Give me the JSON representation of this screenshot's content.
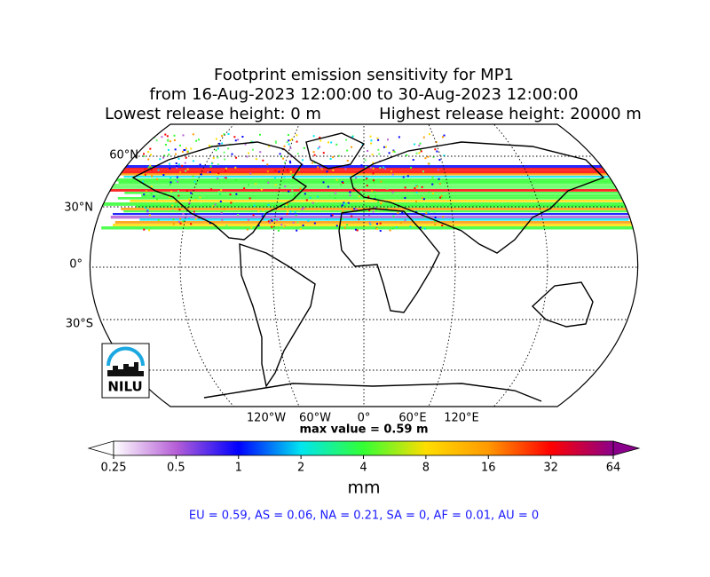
{
  "title": {
    "lines": [
      "Footprint emission sensitivity for MP1",
      "from 16-Aug-2023 12:00:00 to 30-Aug-2023 12:00:00"
    ],
    "lowest": "Lowest release height: 0 m",
    "highest": "Highest release height: 20000 m"
  },
  "map": {
    "lat_labels": [
      "60°N",
      "30°N",
      "0°",
      "30°S"
    ],
    "lon_labels": [
      "120°W",
      "60°W",
      "0°",
      "60°E",
      "120°E"
    ],
    "max_value": "max value = 0.59 m"
  },
  "logo": "NILU",
  "colorbar": {
    "ticks": [
      0.25,
      0.5,
      1,
      2,
      4,
      8,
      16,
      32,
      64
    ],
    "lim": [
      0.25,
      64
    ],
    "log": true,
    "colors": [
      "#ffffff",
      "#b65fd6",
      "#0000ff",
      "#00e5f0",
      "#33ff33",
      "#ffdd00",
      "#ff9900",
      "#ff0000",
      "#8b008b"
    ],
    "label": "mm"
  },
  "footer": "EU = 0.59,  AS = 0.06,  NA = 0.21,  SA = 0,  AF = 0.01,  AU = 0"
}
